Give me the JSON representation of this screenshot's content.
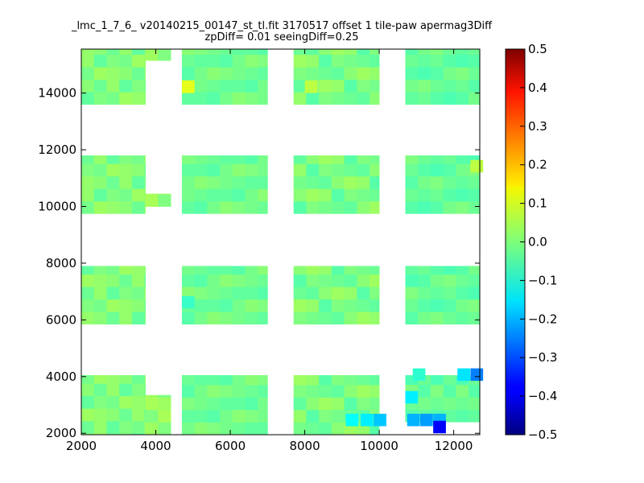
{
  "chart_data": {
    "type": "heatmap",
    "title_line1": "_lmc_1_7_6_ v20140215_00147_st_tl.fit 3170517 offset 1 tile-paw apermag3Diff",
    "title_line2": "zpDiff= 0.01 seeingDiff=0.25",
    "xlabel": "",
    "ylabel": "",
    "xlim": [
      2000,
      12700
    ],
    "ylim": [
      1950,
      15550
    ],
    "xticks": [
      "2000",
      "4000",
      "6000",
      "8000",
      "10000",
      "12000"
    ],
    "yticks": [
      "2000",
      "4000",
      "6000",
      "8000",
      "10000",
      "12000",
      "14000"
    ],
    "colorbar": {
      "vmin": -0.5,
      "vmax": 0.5,
      "ticks": [
        "0.5",
        "0.4",
        "0.3",
        "0.2",
        "0.1",
        "0.0",
        "−0.1",
        "−0.2",
        "−0.3",
        "−0.4",
        "−0.5"
      ],
      "colormap": "jet"
    },
    "cell_size": [
      340,
      440
    ],
    "base_value": -0.04,
    "columns": [
      {
        "x0": 2000,
        "x1": 3720,
        "bands": [
          [
            1950,
            3220
          ],
          [
            2000,
            4050
          ],
          [
            5850,
            7900
          ],
          [
            9750,
            11800
          ],
          [
            13600,
            15550
          ]
        ],
        "values": [
          0.02,
          0.0,
          -0.02,
          0.03,
          -0.03,
          0.01,
          -0.01,
          0.02
        ]
      },
      {
        "x0": 3720,
        "x1": 4400,
        "bands": [
          [
            1950,
            3350
          ],
          [
            10000,
            10450
          ],
          [
            15150,
            15550
          ]
        ],
        "values": [
          0.03,
          0.0,
          0.04
        ]
      },
      {
        "x0": 4700,
        "x1": 7000,
        "bands": [
          [
            1950,
            4050
          ],
          [
            5850,
            7900
          ],
          [
            9750,
            11800
          ],
          [
            13600,
            15550
          ]
        ],
        "values": [
          -0.01,
          -0.03,
          0.0,
          -0.04,
          -0.02,
          0.01,
          -0.03,
          -0.01
        ]
      },
      {
        "x0": 7700,
        "x1": 10000,
        "bands": [
          [
            1950,
            4050
          ],
          [
            5850,
            7900
          ],
          [
            9750,
            11800
          ],
          [
            13600,
            15550
          ]
        ],
        "values": [
          -0.01,
          0.02,
          -0.03,
          0.0,
          0.03,
          -0.02,
          -0.04,
          0.01
        ]
      },
      {
        "x0": 10700,
        "x1": 12700,
        "bands": [
          [
            2400,
            4050
          ],
          [
            5850,
            7900
          ],
          [
            9750,
            11800
          ],
          [
            13600,
            15550
          ]
        ],
        "values": [
          -0.04,
          -0.02,
          0.0,
          -0.05,
          -0.03,
          -0.01,
          -0.04,
          -0.02
        ]
      }
    ],
    "outliers": [
      {
        "x": 9100,
        "y": 2250,
        "value": -0.12
      },
      {
        "x": 9500,
        "y": 2250,
        "value": -0.14
      },
      {
        "x": 9850,
        "y": 2250,
        "value": -0.18
      },
      {
        "x": 10750,
        "y": 2250,
        "value": -0.2
      },
      {
        "x": 11100,
        "y": 2250,
        "value": -0.22
      },
      {
        "x": 11450,
        "y": 2250,
        "value": -0.2
      },
      {
        "x": 11450,
        "y": 2000,
        "value": -0.38
      },
      {
        "x": 10700,
        "y": 3050,
        "value": -0.14
      },
      {
        "x": 12100,
        "y": 3850,
        "value": -0.15
      },
      {
        "x": 12450,
        "y": 3850,
        "value": -0.25
      },
      {
        "x": 10900,
        "y": 3850,
        "value": -0.08
      },
      {
        "x": 4700,
        "y": 14000,
        "value": 0.1
      },
      {
        "x": 8000,
        "y": 14000,
        "value": 0.06
      },
      {
        "x": 12450,
        "y": 11200,
        "value": 0.06
      },
      {
        "x": 4700,
        "y": 6400,
        "value": -0.07
      }
    ]
  }
}
